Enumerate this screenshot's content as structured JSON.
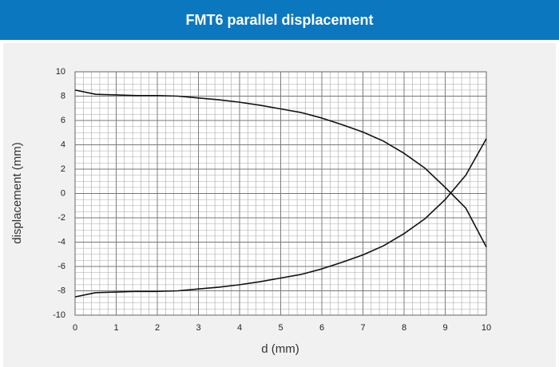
{
  "chart_data": {
    "type": "line",
    "title": "FMT6 parallel displacement",
    "x_label": "d (mm)",
    "y_label": "displacement (mm)",
    "x": [
      0,
      0.5,
      1,
      1.5,
      2,
      2.5,
      3,
      3.5,
      4,
      4.5,
      5,
      5.5,
      6,
      6.5,
      7,
      7.5,
      8,
      8.5,
      9,
      9.5,
      10
    ],
    "series": [
      {
        "color": "#111111",
        "values": [
          8.5,
          8.15,
          8.1,
          8.05,
          8.05,
          8.0,
          7.85,
          7.7,
          7.5,
          7.25,
          6.95,
          6.65,
          6.2,
          5.65,
          5.05,
          4.3,
          3.3,
          2.1,
          0.5,
          -1.2,
          -4.4
        ]
      },
      {
        "color": "#111111",
        "values": [
          -8.5,
          -8.15,
          -8.1,
          -8.05,
          -8.05,
          -8.0,
          -7.85,
          -7.7,
          -7.5,
          -7.25,
          -6.95,
          -6.65,
          -6.2,
          -5.65,
          -5.05,
          -4.3,
          -3.3,
          -2.1,
          -0.5,
          1.5,
          4.5
        ]
      }
    ],
    "xlim": [
      0,
      10
    ],
    "xticks": [
      0,
      1,
      2,
      3,
      4,
      5,
      6,
      7,
      8,
      9,
      10
    ],
    "ylim": [
      -10,
      10
    ],
    "yticks": [
      -10,
      -8,
      -6,
      -4,
      -2,
      0,
      2,
      4,
      6,
      8,
      10
    ],
    "grid": true,
    "x_minor_step": 0.2,
    "y_minor_step": 0.5
  }
}
